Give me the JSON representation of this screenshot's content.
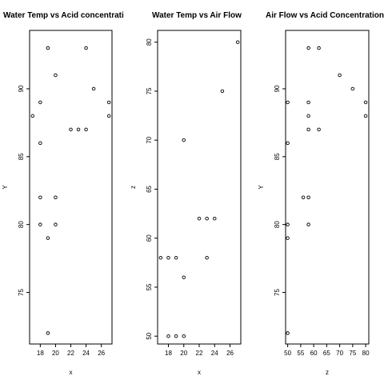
{
  "chart_data": [
    {
      "type": "scatter",
      "title": "Water Temp vs Acid concentrati",
      "xlabel": "x",
      "ylabel": "Y",
      "xlim": [
        16.6,
        27.4
      ],
      "ylim": [
        71.2,
        94.3
      ],
      "xticks": [
        18,
        20,
        22,
        24,
        26
      ],
      "yticks": [
        75,
        80,
        85,
        90
      ],
      "grid": false,
      "points": [
        {
          "x": 19,
          "y": 93
        },
        {
          "x": 24,
          "y": 93
        },
        {
          "x": 20,
          "y": 91
        },
        {
          "x": 25,
          "y": 90
        },
        {
          "x": 18,
          "y": 89
        },
        {
          "x": 27,
          "y": 89
        },
        {
          "x": 17,
          "y": 88
        },
        {
          "x": 27,
          "y": 88
        },
        {
          "x": 22,
          "y": 87
        },
        {
          "x": 23,
          "y": 87
        },
        {
          "x": 24,
          "y": 87
        },
        {
          "x": 18,
          "y": 86
        },
        {
          "x": 18,
          "y": 82
        },
        {
          "x": 20,
          "y": 82
        },
        {
          "x": 18,
          "y": 80
        },
        {
          "x": 20,
          "y": 80
        },
        {
          "x": 19,
          "y": 79
        },
        {
          "x": 19,
          "y": 72
        }
      ]
    },
    {
      "type": "scatter",
      "title": "Water Temp vs Air Flow",
      "xlabel": "x",
      "ylabel": "z",
      "xlim": [
        16.6,
        27.4
      ],
      "ylim": [
        49.2,
        81.2
      ],
      "xticks": [
        18,
        20,
        22,
        24,
        26
      ],
      "yticks": [
        50,
        55,
        60,
        65,
        70,
        75,
        80
      ],
      "grid": false,
      "points": [
        {
          "x": 27,
          "y": 80
        },
        {
          "x": 25,
          "y": 75
        },
        {
          "x": 20,
          "y": 70
        },
        {
          "x": 22,
          "y": 62
        },
        {
          "x": 23,
          "y": 62
        },
        {
          "x": 24,
          "y": 62
        },
        {
          "x": 17,
          "y": 58
        },
        {
          "x": 18,
          "y": 58
        },
        {
          "x": 19,
          "y": 58
        },
        {
          "x": 23,
          "y": 58
        },
        {
          "x": 20,
          "y": 56
        },
        {
          "x": 18,
          "y": 50
        },
        {
          "x": 19,
          "y": 50
        },
        {
          "x": 20,
          "y": 50
        }
      ]
    },
    {
      "type": "scatter",
      "title": "Air Flow vs Acid Concentration",
      "xlabel": "z",
      "ylabel": "Y",
      "xlim": [
        49.2,
        81.2
      ],
      "ylim": [
        71.2,
        94.3
      ],
      "xticks": [
        50,
        55,
        60,
        65,
        70,
        75,
        80
      ],
      "yticks": [
        75,
        80,
        85,
        90
      ],
      "grid": false,
      "points": [
        {
          "x": 58,
          "y": 93
        },
        {
          "x": 62,
          "y": 93
        },
        {
          "x": 70,
          "y": 91
        },
        {
          "x": 75,
          "y": 90
        },
        {
          "x": 50,
          "y": 89
        },
        {
          "x": 58,
          "y": 89
        },
        {
          "x": 80,
          "y": 89
        },
        {
          "x": 58,
          "y": 88
        },
        {
          "x": 80,
          "y": 88
        },
        {
          "x": 58,
          "y": 87
        },
        {
          "x": 62,
          "y": 87
        },
        {
          "x": 50,
          "y": 86
        },
        {
          "x": 56,
          "y": 82
        },
        {
          "x": 58,
          "y": 82
        },
        {
          "x": 50,
          "y": 80
        },
        {
          "x": 58,
          "y": 80
        },
        {
          "x": 50,
          "y": 79
        },
        {
          "x": 50,
          "y": 72
        }
      ]
    }
  ]
}
